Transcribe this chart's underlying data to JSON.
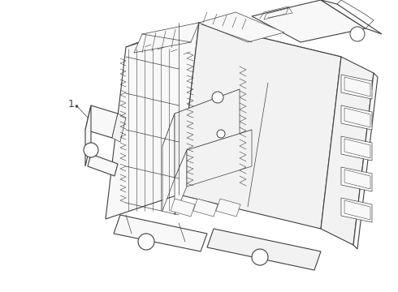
{
  "background_color": "#ffffff",
  "line_color": "#404040",
  "label_number": "1",
  "fig_width": 4.9,
  "fig_height": 3.6,
  "dpi": 100,
  "lw_main": 0.8,
  "lw_thin": 0.5,
  "lw_detail": 0.4,
  "white_fill": "#ffffff",
  "light_fill": "#f8f8f8",
  "mid_fill": "#f2f2f2"
}
